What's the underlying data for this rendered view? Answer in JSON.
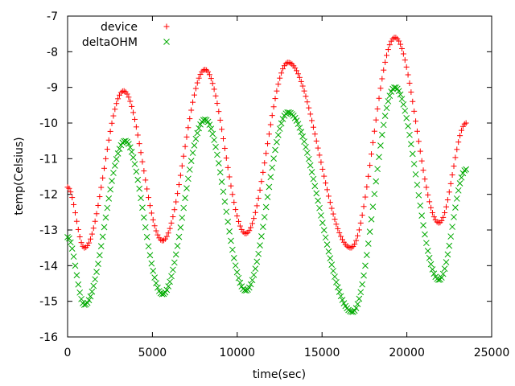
{
  "chart_data": {
    "type": "scatter",
    "title": "",
    "xlabel": "time(sec)",
    "ylabel": "temp(Celsius)",
    "xlim": [
      0,
      25000
    ],
    "ylim": [
      -16,
      -7
    ],
    "xticks": [
      0,
      5000,
      10000,
      15000,
      20000,
      25000
    ],
    "yticks": [
      -16,
      -15,
      -14,
      -13,
      -12,
      -11,
      -10,
      -9,
      -8,
      -7
    ],
    "grid": false,
    "legend_position": "top-left",
    "series": [
      {
        "name": "device",
        "marker": "plus",
        "color": "#ff0000",
        "x": [
          0,
          1000,
          3300,
          5600,
          8100,
          10500,
          13000,
          16700,
          19300,
          21900,
          23500
        ],
        "y": [
          -11.8,
          -13.5,
          -9.1,
          -13.3,
          -8.5,
          -13.1,
          -8.3,
          -13.5,
          -7.6,
          -12.8,
          -10.0
        ]
      },
      {
        "name": "deltaOHM",
        "marker": "cross",
        "color": "#00aa00",
        "x": [
          0,
          1000,
          3400,
          5600,
          8100,
          10500,
          13000,
          16800,
          19300,
          21900,
          23500
        ],
        "y": [
          -13.2,
          -15.1,
          -10.5,
          -14.8,
          -9.9,
          -14.7,
          -9.7,
          -15.3,
          -9.0,
          -14.4,
          -11.3
        ]
      }
    ]
  }
}
